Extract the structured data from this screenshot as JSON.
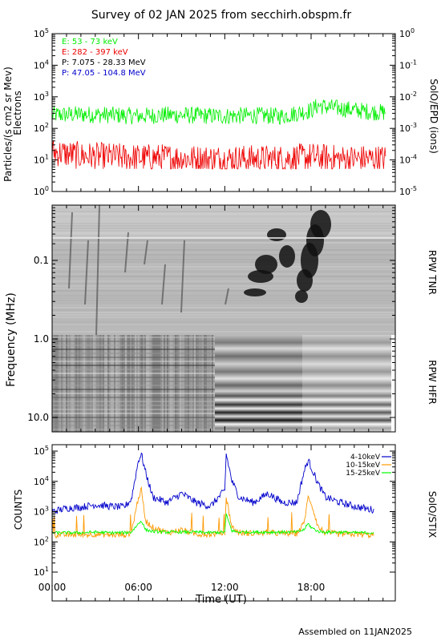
{
  "title": "Survey of 02 JAN 2025 from secchirh.obspm.fr",
  "footer": "Assembled on  11JAN2025",
  "colors": {
    "green": "#00ee00",
    "red": "#ee0000",
    "black": "#000000",
    "blue": "#0000cc",
    "orange": "#ff9900",
    "stix_green": "#00ff00"
  },
  "panels": {
    "epd": {
      "ylabel_left": "Particles/(s cm2 sr Mev)",
      "ylabel_left_2": "Electrons",
      "ylabel_right": "SolO/EPD (ions)",
      "left_ticks": [
        {
          "base": "10",
          "exp": "5"
        },
        {
          "base": "10",
          "exp": "4"
        },
        {
          "base": "10",
          "exp": "3"
        },
        {
          "base": "10",
          "exp": "2"
        },
        {
          "base": "10",
          "exp": "1"
        },
        {
          "base": "10",
          "exp": "0"
        }
      ],
      "right_ticks": [
        {
          "base": "10",
          "exp": "0"
        },
        {
          "base": "10",
          "exp": "-1"
        },
        {
          "base": "10",
          "exp": "-2"
        },
        {
          "base": "10",
          "exp": "-3"
        },
        {
          "base": "10",
          "exp": "-4"
        },
        {
          "base": "10",
          "exp": "-5"
        }
      ],
      "legend": [
        {
          "label": "E: 53 - 73 keV",
          "color": "#00ee00"
        },
        {
          "label": "E: 282 - 397 keV",
          "color": "#ee0000"
        },
        {
          "label": "P: 7.075 - 28.33 MeV",
          "color": "#000000"
        },
        {
          "label": "P: 47.05 - 104.8 MeV",
          "color": "#0000cc"
        }
      ]
    },
    "rpw": {
      "ylabel": "Frequency (MHz)",
      "tnr_label": "RPW TNR",
      "hfr_label": "RPW HFR",
      "ticks": [
        "0.1",
        "1.0",
        "10.0"
      ]
    },
    "stix": {
      "ylabel": "COUNTS",
      "ylabel_right": "SolO/STIX",
      "ticks": [
        {
          "base": "10",
          "exp": "5"
        },
        {
          "base": "10",
          "exp": "4"
        },
        {
          "base": "10",
          "exp": "3"
        },
        {
          "base": "10",
          "exp": "2"
        },
        {
          "base": "10",
          "exp": "1"
        }
      ],
      "legend": [
        {
          "label": "4-10keV",
          "color": "#0000cc"
        },
        {
          "label": "10-15keV",
          "color": "#ff9900"
        },
        {
          "label": "15-25keV",
          "color": "#00ff00"
        }
      ]
    }
  },
  "xaxis": {
    "label": "Time (UT)",
    "ticks": [
      "00:00",
      "06:00",
      "12:00",
      "18:00"
    ]
  },
  "chart_data": [
    {
      "type": "line",
      "title": "Survey of 02 JAN 2025 from secchirh.obspm.fr",
      "ylabel": "Particles/(s cm2 sr Mev)",
      "y2label": "SolO/EPD (ions)",
      "xlim": [
        0,
        24
      ],
      "ylim": [
        1,
        100000
      ],
      "y2lim": [
        1e-05,
        1
      ],
      "yscale": "log",
      "x": [
        0,
        2,
        4,
        6,
        8,
        10,
        12,
        14,
        16,
        18,
        18.5,
        19,
        20,
        22,
        24
      ],
      "series": [
        {
          "name": "E: 53 - 73 keV",
          "values": [
            250,
            260,
            250,
            230,
            250,
            240,
            230,
            240,
            230,
            350,
            500,
            450,
            400,
            320,
            280
          ]
        },
        {
          "name": "E: 282 - 397 keV",
          "values": [
            20,
            15,
            14,
            13,
            13,
            12,
            12,
            12,
            12,
            14,
            13,
            13,
            12,
            12,
            12
          ]
        }
      ]
    },
    {
      "type": "heatmap",
      "ylabel": "Frequency (MHz)",
      "xlim": [
        0,
        24
      ],
      "ylim": [
        0.03,
        16
      ],
      "yscale": "log"
    },
    {
      "type": "line",
      "ylabel": "COUNTS",
      "y2label": "SolO/STIX",
      "xlabel": "Time (UT)",
      "xlim": [
        0,
        24
      ],
      "ylim": [
        10,
        100000
      ],
      "yscale": "log",
      "x": [
        0,
        1,
        2,
        3,
        4,
        5,
        5.5,
        6,
        6.2,
        6.5,
        7,
        8,
        9,
        10,
        11,
        12,
        12.1,
        12.5,
        13,
        14,
        15,
        16,
        17,
        17.5,
        17.8,
        18,
        18.5,
        19,
        20,
        21,
        22,
        23,
        24
      ],
      "series": [
        {
          "name": "4-10keV",
          "values": [
            1000,
            1300,
            1400,
            1700,
            1500,
            1400,
            2500,
            50000,
            80000,
            20000,
            3000,
            2000,
            4000,
            2000,
            1500,
            5000,
            80000,
            10000,
            3000,
            2000,
            4000,
            2000,
            2000,
            20000,
            50000,
            30000,
            8000,
            3000,
            2000,
            1500,
            1200,
            1100,
            1000
          ]
        },
        {
          "name": "10-15keV",
          "values": [
            170,
            170,
            170,
            180,
            170,
            170,
            200,
            3000,
            5000,
            500,
            300,
            200,
            250,
            180,
            180,
            200,
            3000,
            300,
            200,
            190,
            200,
            190,
            190,
            400,
            3000,
            2000,
            300,
            200,
            180,
            180,
            170,
            170,
            170
          ]
        },
        {
          "name": "15-25keV",
          "values": [
            200,
            200,
            200,
            210,
            200,
            200,
            210,
            400,
            500,
            250,
            220,
            210,
            210,
            210,
            200,
            210,
            800,
            230,
            210,
            210,
            210,
            210,
            210,
            250,
            400,
            300,
            220,
            210,
            210,
            200,
            200,
            200,
            200
          ]
        }
      ]
    }
  ]
}
